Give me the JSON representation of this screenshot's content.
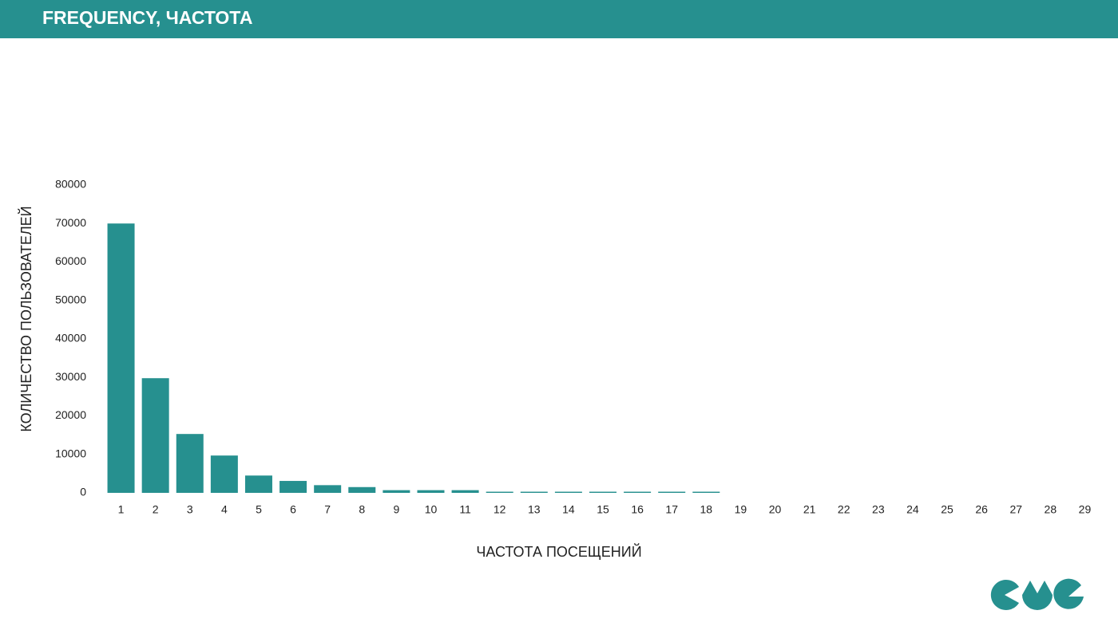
{
  "chart_data": {
    "type": "bar",
    "title": "FREQUENCY, ЧАСТОТА",
    "x_label": "ЧАСТОТА ПОСЕЩЕНИЙ",
    "y_label": "КОЛИЧЕСТВО ПОЛЬЗОВАТЕЛЕЙ",
    "categories": [
      "1",
      "2",
      "3",
      "4",
      "5",
      "6",
      "7",
      "8",
      "9",
      "10",
      "11",
      "12",
      "13",
      "14",
      "15",
      "16",
      "17",
      "18",
      "19",
      "20",
      "21",
      "22",
      "23",
      "24",
      "25",
      "26",
      "27",
      "28",
      "29"
    ],
    "values": [
      70000,
      29800,
      15300,
      9700,
      4500,
      3100,
      2000,
      1500,
      700,
      700,
      700,
      300,
      300,
      300,
      300,
      300,
      300,
      300,
      0,
      0,
      0,
      0,
      0,
      0,
      0,
      0,
      0,
      0,
      0
    ],
    "color": "#26908f",
    "ylim": [
      0,
      80000
    ],
    "yticks": [
      0,
      10000,
      20000,
      30000,
      40000,
      50000,
      60000,
      70000,
      80000
    ],
    "grid": false
  }
}
